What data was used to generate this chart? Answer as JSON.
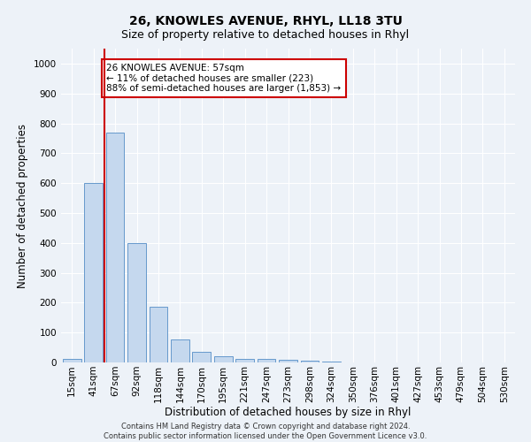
{
  "title1": "26, KNOWLES AVENUE, RHYL, LL18 3TU",
  "title2": "Size of property relative to detached houses in Rhyl",
  "xlabel": "Distribution of detached houses by size in Rhyl",
  "ylabel": "Number of detached properties",
  "footnote1": "Contains HM Land Registry data © Crown copyright and database right 2024.",
  "footnote2": "Contains public sector information licensed under the Open Government Licence v3.0.",
  "categories": [
    "15sqm",
    "41sqm",
    "67sqm",
    "92sqm",
    "118sqm",
    "144sqm",
    "170sqm",
    "195sqm",
    "221sqm",
    "247sqm",
    "273sqm",
    "298sqm",
    "324sqm",
    "350sqm",
    "376sqm",
    "401sqm",
    "427sqm",
    "453sqm",
    "479sqm",
    "504sqm",
    "530sqm"
  ],
  "bar_values": [
    13,
    600,
    770,
    400,
    185,
    78,
    35,
    20,
    12,
    13,
    10,
    5,
    2,
    1,
    0,
    0,
    0,
    0,
    0,
    0,
    0
  ],
  "bar_color": "#c5d8ee",
  "bar_edge_color": "#6699cc",
  "ylim": [
    0,
    1050
  ],
  "yticks": [
    0,
    100,
    200,
    300,
    400,
    500,
    600,
    700,
    800,
    900,
    1000
  ],
  "vline_x": 1.5,
  "vline_color": "#cc0000",
  "annotation_text": "26 KNOWLES AVENUE: 57sqm\n← 11% of detached houses are smaller (223)\n88% of semi-detached houses are larger (1,853) →",
  "annotation_box_color": "#ffffff",
  "annotation_box_edge_color": "#cc0000",
  "bg_color": "#edf2f8",
  "plot_bg_color": "#edf2f8",
  "grid_color": "#ffffff",
  "title1_fontsize": 10,
  "title2_fontsize": 9,
  "xlabel_fontsize": 8.5,
  "ylabel_fontsize": 8.5,
  "tick_fontsize": 7.5,
  "annot_fontsize": 7.5,
  "footnote_fontsize": 6
}
